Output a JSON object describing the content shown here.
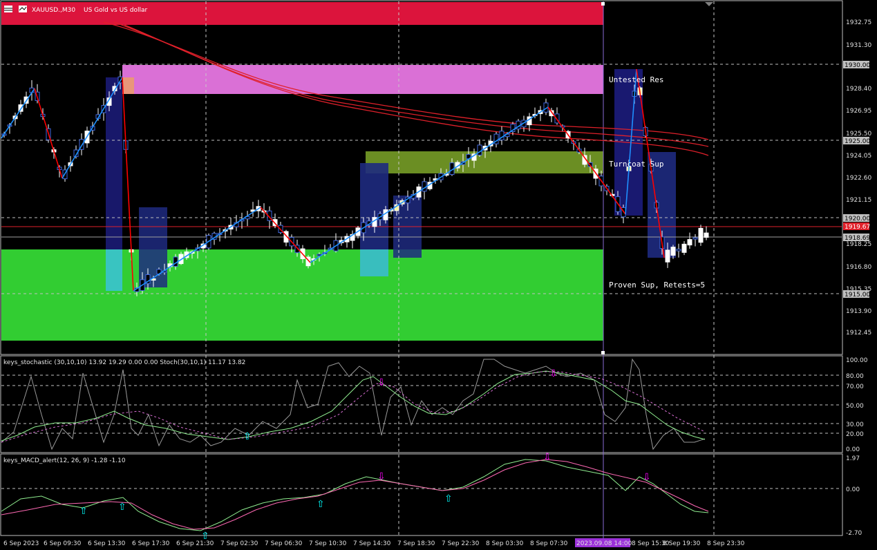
{
  "chart_title": {
    "symbol": "XAUUSD.,M30",
    "description": "US Gold vs US dollar"
  },
  "price_axis": {
    "labels": [
      "1932.75",
      "1931.30",
      "1930.00",
      "1928.40",
      "1926.95",
      "1925.50",
      "1925.00",
      "1924.05",
      "1922.60",
      "1921.15",
      "1920.00",
      "1919.67",
      "1918.69",
      "1918.25",
      "1916.80",
      "1915.35",
      "1915.00",
      "1913.90",
      "1912.45"
    ]
  },
  "price_tags": {
    "resistance_line": {
      "value": "1930.00",
      "color": "#c0c0c0"
    },
    "res_line_2": {
      "value": "1925.00",
      "color": "#c0c0c0"
    },
    "sup_line_1": {
      "value": "1920.00",
      "color": "#c0c0c0"
    },
    "current_bid": {
      "value": "1919.67",
      "color": "#e0202a"
    },
    "ask": {
      "value": "1918.69",
      "color": "#c0c0c0"
    },
    "sup_line_2": {
      "value": "1915.00",
      "color": "#c0c0c0"
    }
  },
  "zones": {
    "untested_res_label": "Untested Res",
    "turncoat_sup_label": "Turncoat Sup",
    "proven_sup_label": "Proven Sup, Retests=5"
  },
  "stochastic": {
    "title": "keys_stochastic (30,10,10) 13.92 19.29 0.00 0.00 Stoch(30,10,1) 11.17 13.82",
    "levels": [
      "100.00",
      "80.00",
      "70.00",
      "50.00",
      "30.00",
      "20.00",
      "0.00"
    ]
  },
  "macd": {
    "title": "keys_MACD_alert(12, 26, 9) -1.28 -1.10",
    "levels": [
      "1.97",
      "0.00",
      "-2.70"
    ]
  },
  "time_axis": {
    "labels": [
      "6 Sep 2023",
      "6 Sep 09:30",
      "6 Sep 13:30",
      "6 Sep 17:30",
      "6 Sep 21:30",
      "7 Sep 02:30",
      "7 Sep 06:30",
      "7 Sep 10:30",
      "7 Sep 14:30",
      "7 Sep 18:30",
      "7 Sep 22:30",
      "8 Sep 03:30",
      "8 Sep 07:30",
      "2023.09.08 14:00",
      "8 Sep 15:30",
      "8 Sep 19:30",
      "8 Sep 23:30"
    ],
    "crosshair_label": "2023.09.08 14:00"
  },
  "colors": {
    "res_zone": "#dc143c",
    "untested_res_zone": "#da70d6",
    "turncoat_zone": "#6b8e23",
    "proven_sup_zone": "#32cd32",
    "bull_candle": "#ffffff",
    "bear_candle": "#4169e1",
    "zigzag_up": "#1e90ff",
    "zigzag_down": "#ff0000",
    "ma_lines": "#e0202a",
    "stoch_main": "#c0c0c0",
    "stoch_signal": "#90ee90",
    "stoch_dash": "#da70d6",
    "macd_main": "#90ee90",
    "macd_signal": "#ff69b4",
    "arrow_up": "#00ffff",
    "arrow_down": "#ff00ff"
  }
}
